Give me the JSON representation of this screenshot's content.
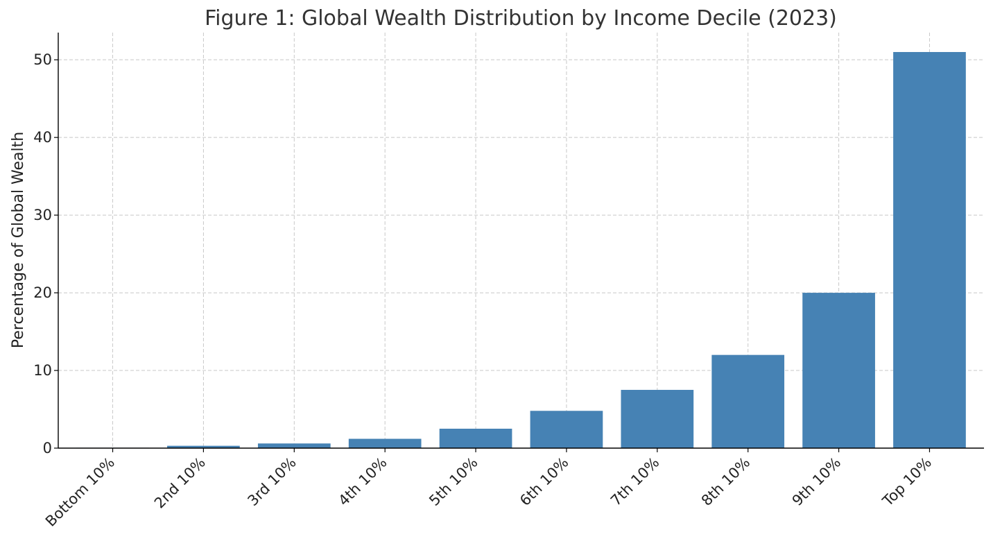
{
  "chart_data": {
    "type": "bar",
    "title": "Figure 1: Global Wealth Distribution by Income Decile (2023)",
    "xlabel": "",
    "ylabel": "Percentage of Global Wealth",
    "categories": [
      "Bottom 10%",
      "2nd 10%",
      "3rd 10%",
      "4th 10%",
      "5th 10%",
      "6th 10%",
      "7th 10%",
      "8th 10%",
      "9th 10%",
      "Top 10%"
    ],
    "values": [
      0.05,
      0.3,
      0.6,
      1.2,
      2.5,
      4.8,
      7.5,
      12,
      20,
      51
    ],
    "yticks": [
      0,
      10,
      20,
      30,
      40,
      50
    ],
    "ylim": [
      0,
      53.5
    ],
    "grid": true,
    "bar_color": "#4682b4"
  }
}
